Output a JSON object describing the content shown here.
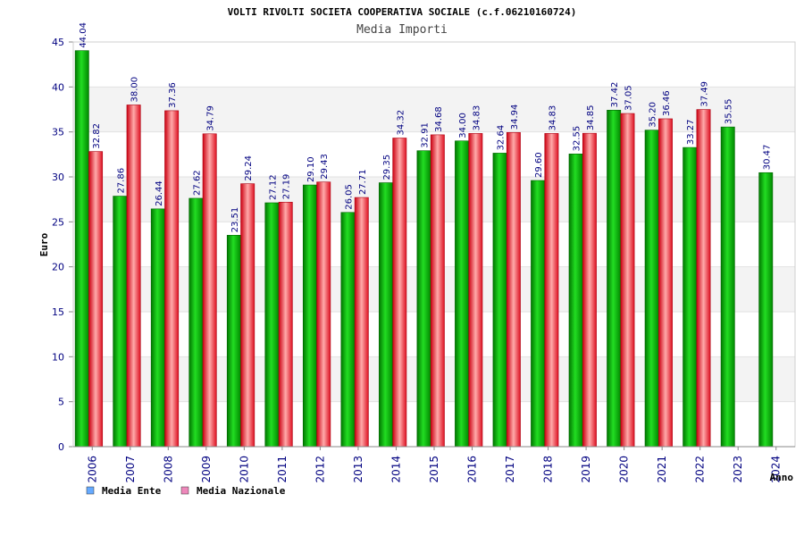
{
  "chart_data": {
    "type": "bar",
    "title": "VOLTI RIVOLTI SOCIETA COOPERATIVA SOCIALE (c.f.06210160724)",
    "subtitle": "Media Importi",
    "xlabel": "Anno",
    "ylabel": "Euro",
    "ylim": [
      0,
      45
    ],
    "yticks": [
      "0",
      "5",
      "10",
      "15",
      "20",
      "25",
      "30",
      "35",
      "40",
      "45"
    ],
    "categories": [
      "2006",
      "2007",
      "2008",
      "2009",
      "2010",
      "2011",
      "2012",
      "2013",
      "2014",
      "2015",
      "2016",
      "2017",
      "2018",
      "2019",
      "2020",
      "2021",
      "2022",
      "2023",
      "2024"
    ],
    "series": [
      {
        "name": "Media Ente",
        "legend_color": "#66aaff",
        "color": "#00bb00",
        "values": [
          44.04,
          27.86,
          26.44,
          27.62,
          23.51,
          27.12,
          29.1,
          26.05,
          29.35,
          32.91,
          34.0,
          32.64,
          29.6,
          32.55,
          37.42,
          35.2,
          33.27,
          35.55,
          30.47
        ],
        "labels": [
          "44.04",
          "27.86",
          "26.44",
          "27.62",
          "23.51",
          "27.12",
          "29.10",
          "26.05",
          "29.35",
          "32.91",
          "34.00",
          "32.64",
          "29.60",
          "32.55",
          "37.42",
          "35.20",
          "33.27",
          "35.55",
          "30.47"
        ]
      },
      {
        "name": "Media Nazionale",
        "legend_color": "#ee88bb",
        "color": "#ee2233",
        "values": [
          32.82,
          38.0,
          37.36,
          34.79,
          29.24,
          27.19,
          29.43,
          27.71,
          34.32,
          34.68,
          34.83,
          34.94,
          34.83,
          34.85,
          37.05,
          36.46,
          37.49,
          null,
          null
        ],
        "labels": [
          "32.82",
          "38.00",
          "37.36",
          "34.79",
          "29.24",
          "27.19",
          "29.43",
          "27.71",
          "34.32",
          "34.68",
          "34.83",
          "34.94",
          "34.83",
          "34.85",
          "37.05",
          "36.46",
          "37.49",
          null,
          null
        ]
      }
    ]
  }
}
